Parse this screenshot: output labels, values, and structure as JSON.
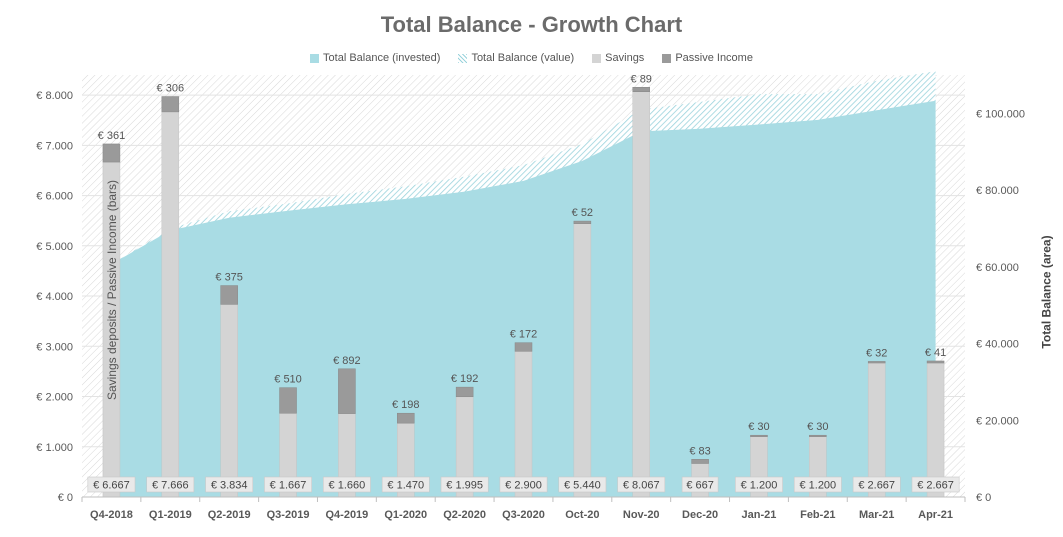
{
  "title": "Total Balance - Growth Chart",
  "legend": {
    "invested": "Total Balance (invested)",
    "value": "Total Balance (value)",
    "savings": "Savings",
    "passive": "Passive Income"
  },
  "colors": {
    "invested": "#a9dce4",
    "value_hatch": "#9ad3dc",
    "savings": "#d4d4d4",
    "passive": "#9a9a9a",
    "axis_text": "#595959"
  },
  "chart_data": {
    "type": "bar",
    "title": "Total Balance - Growth Chart",
    "ylabel": "Savings deposits / Passive Income (bars)",
    "y2label": "Total Balance (area)",
    "ylim": [
      0,
      8000
    ],
    "y2lim": [
      0,
      110000
    ],
    "y_ticks": [
      "€ 0",
      "€ 1.000",
      "€ 2.000",
      "€ 3.000",
      "€ 4.000",
      "€ 5.000",
      "€ 6.000",
      "€ 7.000",
      "€ 8.000"
    ],
    "y2_ticks": [
      "€ 0",
      "€ 20.000",
      "€ 40.000",
      "€ 60.000",
      "€ 80.000",
      "€ 100.000"
    ],
    "categories": [
      "Q4-2018",
      "Q1-2019",
      "Q2-2019",
      "Q3-2019",
      "Q4-2019",
      "Q1-2020",
      "Q2-2020",
      "Q3-2020",
      "Oct-20",
      "Nov-20",
      "Dec-20",
      "Jan-21",
      "Feb-21",
      "Mar-21",
      "Apr-21"
    ],
    "series": [
      {
        "name": "Savings",
        "values": [
          6667,
          7666,
          3834,
          1667,
          1660,
          1470,
          1995,
          2900,
          5440,
          8067,
          667,
          1200,
          1200,
          2667,
          2667
        ],
        "labels": [
          "€ 6.667",
          "€ 7.666",
          "€ 3.834",
          "€ 1.667",
          "€ 1.660",
          "€ 1.470",
          "€ 1.995",
          "€ 2.900",
          "€ 5.440",
          "€ 8.067",
          "€ 667",
          "€ 1.200",
          "€ 1.200",
          "€ 2.667",
          "€ 2.667"
        ]
      },
      {
        "name": "Passive Income",
        "values": [
          361,
          306,
          375,
          510,
          892,
          198,
          192,
          172,
          52,
          89,
          83,
          30,
          30,
          32,
          41
        ],
        "labels": [
          "€ 361",
          "€ 306",
          "€ 375",
          "€ 510",
          "€ 892",
          "€ 198",
          "€ 192",
          "€ 172",
          "€ 52",
          "€ 89",
          "€ 83",
          "€ 30",
          "€ 30",
          "€ 32",
          "€ 41"
        ]
      },
      {
        "name": "Total Balance (invested)",
        "values": [
          60700,
          69500,
          72800,
          74600,
          76300,
          77700,
          79600,
          82400,
          87600,
          95300,
          96000,
          97100,
          98300,
          100800,
          103300
        ]
      },
      {
        "name": "Total Balance (value)",
        "values": [
          60700,
          70000,
          74500,
          76500,
          79000,
          81000,
          83500,
          86500,
          92000,
          101000,
          103000,
          105000,
          105000,
          108500,
          111000
        ]
      }
    ]
  }
}
